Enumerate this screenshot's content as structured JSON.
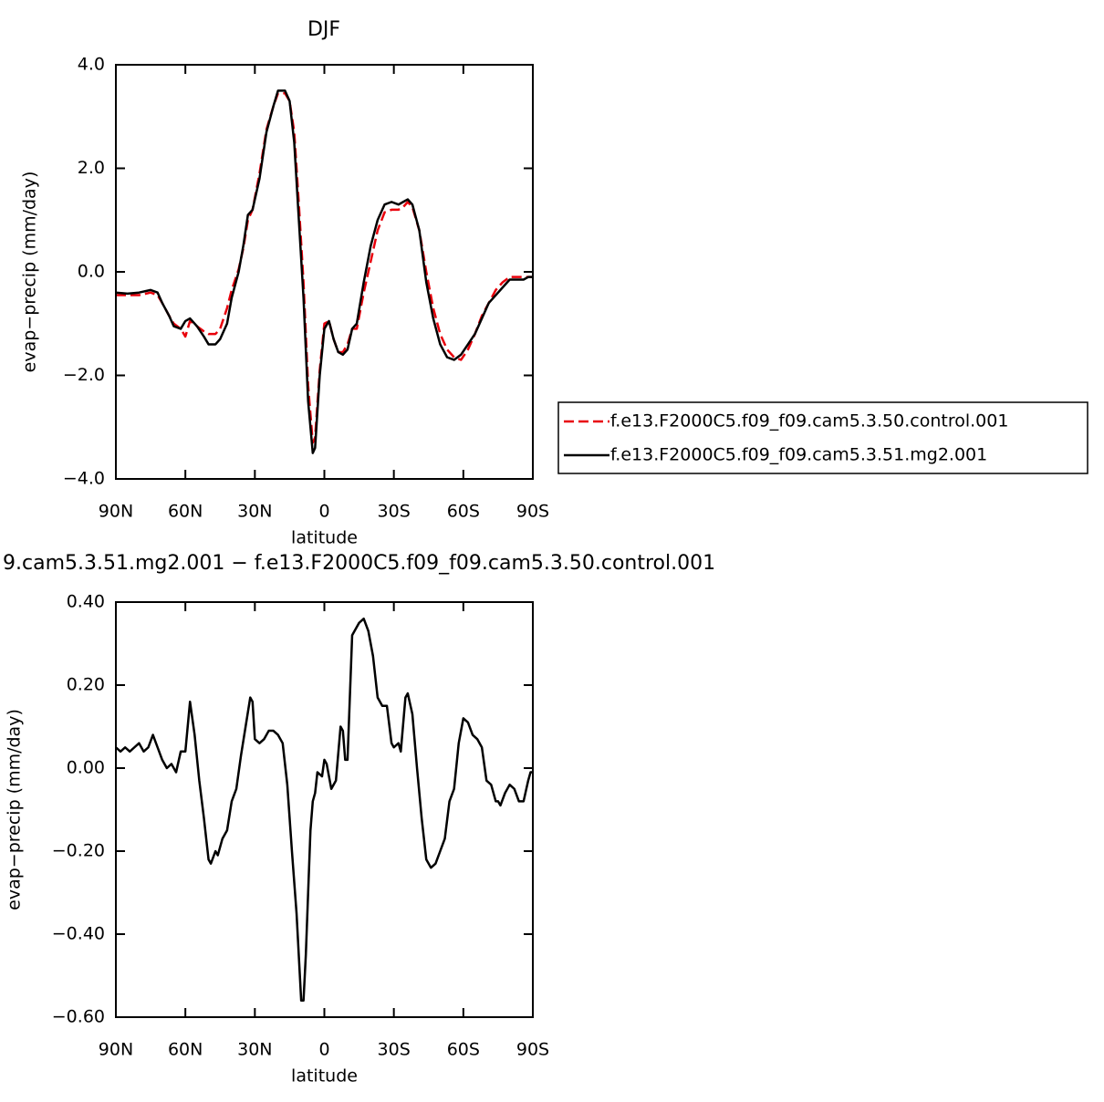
{
  "chart_data": [
    {
      "type": "line",
      "title": "DJF",
      "xlabel": "latitude",
      "ylabel": "evap−precip (mm/day)",
      "xlim": [
        90,
        -90
      ],
      "ylim": [
        -4,
        4
      ],
      "xticks": [
        {
          "value": 90,
          "label": "90N"
        },
        {
          "value": 60,
          "label": "60N"
        },
        {
          "value": 30,
          "label": "30N"
        },
        0,
        {
          "value": -30,
          "label": "30S"
        },
        {
          "value": -60,
          "label": "60S"
        },
        {
          "value": -90,
          "label": "90S"
        }
      ],
      "yticks": [
        {
          "value": 4,
          "label": "4.0"
        },
        {
          "value": 2,
          "label": "2.0"
        },
        {
          "value": 0,
          "label": "0.0"
        },
        {
          "value": -2,
          "label": "−2.0"
        },
        {
          "value": -4,
          "label": "−4.0"
        }
      ],
      "legend": "outside-right",
      "x": [
        90,
        85,
        80,
        75,
        72,
        70,
        67,
        65,
        62,
        60,
        58,
        55,
        52,
        50,
        47,
        45,
        42,
        40,
        37,
        35,
        33,
        31,
        28,
        25,
        22,
        20,
        17,
        15,
        13,
        11,
        9,
        7,
        5,
        4,
        2,
        0,
        -2,
        -4,
        -6,
        -8,
        -10,
        -12,
        -14,
        -17,
        -20,
        -23,
        -26,
        -29,
        -32,
        -34,
        -36,
        -38,
        -41,
        -44,
        -47,
        -50,
        -53,
        -56,
        -59,
        -62,
        -65,
        -68,
        -71,
        -74,
        -77,
        -80,
        -83,
        -86,
        -88,
        -90
      ],
      "series": [
        {
          "name": "f.e13.F2000C5.f09_f09.cam5.3.50.control.001",
          "color": "#e8000b",
          "dash": true,
          "values": [
            -0.45,
            -0.45,
            -0.45,
            -0.4,
            -0.45,
            -0.6,
            -0.85,
            -1.0,
            -1.1,
            -1.25,
            -0.95,
            -1.05,
            -1.15,
            -1.2,
            -1.2,
            -1.1,
            -0.7,
            -0.35,
            0.05,
            0.45,
            1.0,
            1.2,
            1.9,
            2.75,
            3.2,
            3.45,
            3.45,
            3.3,
            2.7,
            1.3,
            -0.2,
            -2.2,
            -3.3,
            -3.2,
            -1.9,
            -1.0,
            -0.95,
            -1.3,
            -1.55,
            -1.55,
            -1.4,
            -1.1,
            -1.1,
            -0.4,
            0.2,
            0.8,
            1.15,
            1.2,
            1.2,
            1.25,
            1.35,
            1.25,
            0.8,
            0.0,
            -0.7,
            -1.2,
            -1.5,
            -1.65,
            -1.7,
            -1.5,
            -1.2,
            -0.85,
            -0.6,
            -0.35,
            -0.2,
            -0.1,
            -0.1,
            -0.1,
            -0.1,
            -0.1
          ]
        },
        {
          "name": "f.e13.F2000C5.f09_f09.cam5.3.51.mg2.001",
          "color": "#000000",
          "dash": false,
          "values": [
            -0.4,
            -0.42,
            -0.4,
            -0.35,
            -0.4,
            -0.6,
            -0.85,
            -1.05,
            -1.1,
            -0.95,
            -0.9,
            -1.05,
            -1.25,
            -1.4,
            -1.4,
            -1.3,
            -1.0,
            -0.5,
            0.0,
            0.5,
            1.1,
            1.2,
            1.8,
            2.7,
            3.2,
            3.5,
            3.5,
            3.3,
            2.5,
            1.0,
            -0.5,
            -2.5,
            -3.5,
            -3.4,
            -2.0,
            -1.1,
            -0.95,
            -1.3,
            -1.55,
            -1.6,
            -1.5,
            -1.1,
            -1.0,
            -0.2,
            0.5,
            1.0,
            1.3,
            1.35,
            1.3,
            1.35,
            1.4,
            1.3,
            0.8,
            -0.2,
            -0.9,
            -1.4,
            -1.65,
            -1.7,
            -1.6,
            -1.4,
            -1.2,
            -0.9,
            -0.6,
            -0.45,
            -0.3,
            -0.15,
            -0.15,
            -0.15,
            -0.1,
            -0.1
          ]
        }
      ]
    },
    {
      "type": "line",
      "title": "9.cam5.3.51.mg2.001 − f.e13.F2000C5.f09_f09.cam5.3.50.control.001",
      "xlabel": "latitude",
      "ylabel": "evap−precip (mm/day)",
      "xlim": [
        90,
        -90
      ],
      "ylim": [
        -0.6,
        0.4
      ],
      "xticks": [
        {
          "value": 90,
          "label": "90N"
        },
        {
          "value": 60,
          "label": "60N"
        },
        {
          "value": 30,
          "label": "30N"
        },
        0,
        {
          "value": -30,
          "label": "30S"
        },
        {
          "value": -60,
          "label": "60S"
        },
        {
          "value": -90,
          "label": "90S"
        }
      ],
      "yticks": [
        {
          "value": 0.4,
          "label": "0.40"
        },
        {
          "value": 0.2,
          "label": "0.20"
        },
        {
          "value": 0,
          "label": "0.00"
        },
        {
          "value": -0.2,
          "label": "−0.20"
        },
        {
          "value": -0.4,
          "label": "−0.40"
        },
        {
          "value": -0.6,
          "label": "−0.60"
        }
      ],
      "x": [
        90,
        88,
        86,
        84,
        82,
        80,
        78,
        76,
        74,
        72,
        70,
        68,
        66,
        64,
        62,
        60,
        58,
        56,
        54,
        52,
        50,
        49,
        47,
        46,
        44,
        42,
        40,
        38,
        36,
        34,
        32,
        31,
        30,
        28,
        26,
        24,
        22,
        20,
        18,
        16,
        14,
        12,
        10,
        9,
        8,
        6,
        5,
        4,
        3,
        1,
        0,
        -1,
        -3,
        -5,
        -7,
        -8,
        -9,
        -10,
        -12,
        -15,
        -17,
        -19,
        -21,
        -23,
        -25,
        -27,
        -29,
        -30,
        -32,
        -33,
        -35,
        -36,
        -38,
        -40,
        -42,
        -44,
        -46,
        -48,
        -50,
        -52,
        -54,
        -56,
        -58,
        -60,
        -62,
        -64,
        -66,
        -68,
        -70,
        -72,
        -74,
        -75,
        -76,
        -78,
        -80,
        -82,
        -84,
        -86,
        -88,
        -89,
        -90
      ],
      "series": [
        {
          "color": "#000000",
          "dash": false,
          "values": [
            0.05,
            0.04,
            0.05,
            0.04,
            0.05,
            0.06,
            0.04,
            0.05,
            0.08,
            0.05,
            0.02,
            0.0,
            0.01,
            -0.01,
            0.04,
            0.04,
            0.16,
            0.08,
            -0.03,
            -0.12,
            -0.22,
            -0.23,
            -0.2,
            -0.21,
            -0.17,
            -0.15,
            -0.08,
            -0.05,
            0.03,
            0.1,
            0.17,
            0.16,
            0.07,
            0.06,
            0.07,
            0.09,
            0.09,
            0.08,
            0.06,
            -0.04,
            -0.2,
            -0.35,
            -0.56,
            -0.56,
            -0.45,
            -0.15,
            -0.08,
            -0.06,
            -0.01,
            -0.02,
            0.02,
            0.01,
            -0.05,
            -0.03,
            0.1,
            0.09,
            0.02,
            0.02,
            0.32,
            0.35,
            0.36,
            0.33,
            0.27,
            0.17,
            0.15,
            0.15,
            0.06,
            0.05,
            0.06,
            0.04,
            0.17,
            0.18,
            0.13,
            0.0,
            -0.12,
            -0.22,
            -0.24,
            -0.23,
            -0.2,
            -0.17,
            -0.08,
            -0.05,
            0.06,
            0.12,
            0.11,
            0.08,
            0.07,
            0.05,
            -0.03,
            -0.04,
            -0.08,
            -0.08,
            -0.09,
            -0.06,
            -0.04,
            -0.05,
            -0.08,
            -0.08,
            -0.03,
            -0.01,
            -0.01
          ]
        }
      ]
    }
  ]
}
